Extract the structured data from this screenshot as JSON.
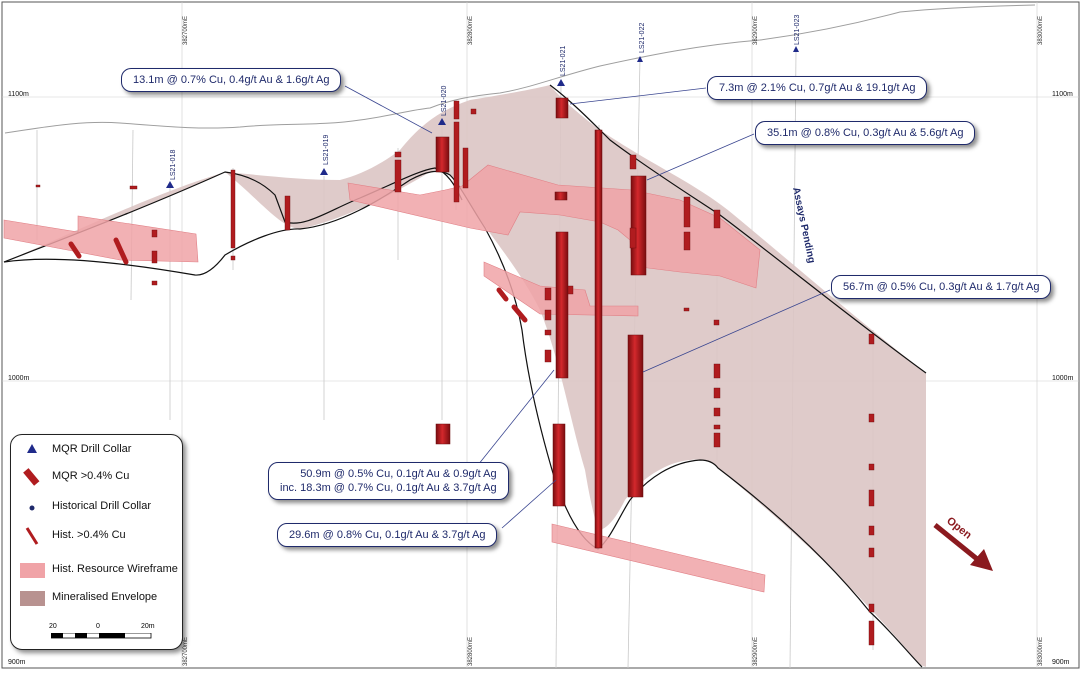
{
  "eastings": {
    "top": [
      "382700mE",
      "382800mE",
      "382900mE",
      "383000mE"
    ],
    "bottom": [
      "382700mE",
      "382800mE",
      "382900mE",
      "383000mE"
    ]
  },
  "elevations": {
    "left": [
      "1100m",
      "1000m",
      "900m"
    ],
    "right": [
      "1100m",
      "1000m",
      "900m"
    ]
  },
  "drill_holes": [
    "LS21-018",
    "LS21-019",
    "LS21-020",
    "LS21-021",
    "LS21-022",
    "LS21-023"
  ],
  "assays_pending": "Assays Pending",
  "open_label": "Open",
  "annotations": {
    "a1": "13.1m @ 0.7% Cu, 0.4g/t Au & 1.6g/t Ag",
    "a2": "7.3m @ 2.1% Cu, 0.7g/t Au & 19.1g/t Ag",
    "a3": "35.1m @ 0.8% Cu, 0.3g/t Au & 5.6g/t Ag",
    "a4": "56.7m @ 0.5% Cu, 0.3g/t Au & 1.7g/t Ag",
    "a5_line1": "50.9m @ 0.5% Cu, 0.1g/t Au & 0.9g/t Ag",
    "a5_line2": "inc. 18.3m @ 0.7% Cu, 0.1g/t Au & 3.7g/t Ag",
    "a6": "29.6m @ 0.8% Cu, 0.1g/t Au & 3.7g/t Ag"
  },
  "legend": {
    "items": [
      {
        "label": "MQR Drill Collar",
        "icon": "triangle-icon"
      },
      {
        "label": "MQR >0.4% Cu",
        "icon": "intercept-bar-icon"
      },
      {
        "label": "Historical Drill Collar",
        "icon": "dot-icon"
      },
      {
        "label": "Hist. >0.4% Cu",
        "icon": "hist-intercept-icon"
      },
      {
        "label": "Hist. Resource Wireframe",
        "icon": "wireframe-swatch-icon"
      },
      {
        "label": "Mineralised Envelope",
        "icon": "envelope-swatch-icon"
      }
    ],
    "scale": {
      "left": "20",
      "mid": "0",
      "right": "20m"
    }
  },
  "colors": {
    "envelope": "#dcc5c4",
    "wireframe": "#f0a3a7",
    "intercept": "#b01c1f",
    "label_text": "#1f2a6b",
    "arrow": "#8b1a1f"
  }
}
